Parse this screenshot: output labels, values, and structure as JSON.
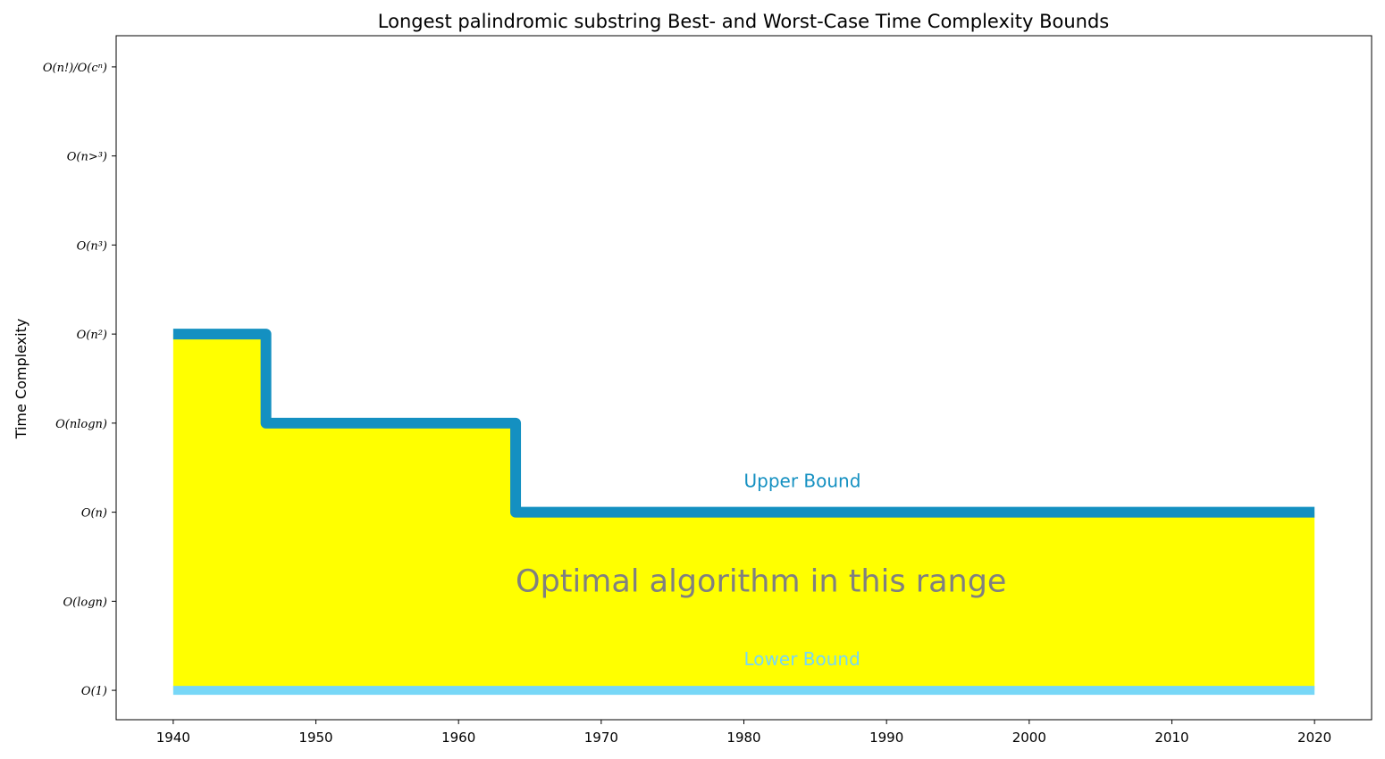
{
  "chart_data": {
    "type": "line",
    "title": "Longest palindromic substring Best- and Worst-Case Time Complexity Bounds",
    "xlabel": "",
    "ylabel": "Time Complexity",
    "xlim": [
      1936,
      2024
    ],
    "ylim": [
      -0.33,
      7.35
    ],
    "x_ticks": [
      1940,
      1950,
      1960,
      1970,
      1980,
      1990,
      2000,
      2010,
      2020
    ],
    "y_ticks": [
      {
        "value": 0,
        "label": "O(1)"
      },
      {
        "value": 1,
        "label": "O(logn)"
      },
      {
        "value": 2,
        "label": "O(n)"
      },
      {
        "value": 3,
        "label": "O(nlogn)"
      },
      {
        "value": 4,
        "label": "O(n²)"
      },
      {
        "value": 5,
        "label": "O(n³)"
      },
      {
        "value": 6,
        "label": "O(n>³)"
      },
      {
        "value": 7,
        "label": "O(n!)/O(cⁿ)"
      }
    ],
    "grid": false,
    "series": [
      {
        "name": "Upper Bound",
        "color": "#1490c1",
        "step": true,
        "points": [
          [
            1940,
            4
          ],
          [
            1946.5,
            4
          ],
          [
            1946.5,
            3
          ],
          [
            1964,
            3
          ],
          [
            1964,
            2
          ],
          [
            2020,
            2
          ]
        ]
      },
      {
        "name": "Lower Bound",
        "color": "#77d7f7",
        "step": true,
        "points": [
          [
            1940,
            0
          ],
          [
            2020,
            0
          ]
        ]
      }
    ],
    "fill_color": "#ffff00",
    "annotations": [
      {
        "text": "Upper Bound",
        "x": 1980,
        "y": 2.28,
        "color": "#1490c1",
        "size": "medium"
      },
      {
        "text": "Lower Bound",
        "x": 1980,
        "y": 0.28,
        "color": "#77d7f7",
        "size": "medium"
      },
      {
        "text": "Optimal algorithm in this range",
        "x": 1964,
        "y": 1.11,
        "color": "#808080",
        "size": "large"
      }
    ]
  }
}
